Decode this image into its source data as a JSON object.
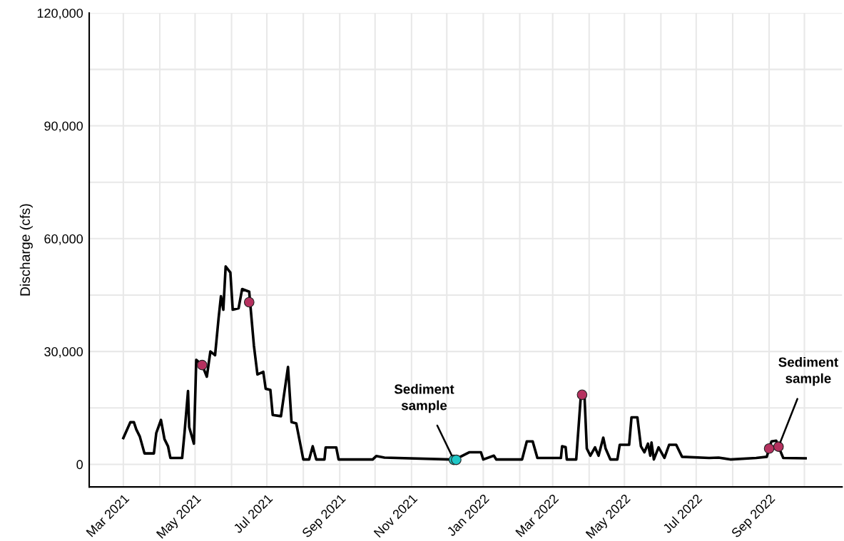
{
  "chart_data": {
    "type": "line",
    "ylabel": "Discharge (cfs)",
    "xlim": [
      "2021-01-31",
      "2022-11-02"
    ],
    "xticks": [
      {
        "value": "2021-03-01",
        "label": "Mar 2021"
      },
      {
        "value": "2021-04-01",
        "label": null
      },
      {
        "value": "2021-05-01",
        "label": "May 2021"
      },
      {
        "value": "2021-06-01",
        "label": null
      },
      {
        "value": "2021-07-01",
        "label": "Jul 2021"
      },
      {
        "value": "2021-08-01",
        "label": null
      },
      {
        "value": "2021-09-01",
        "label": "Sep 2021"
      },
      {
        "value": "2021-10-01",
        "label": null
      },
      {
        "value": "2021-11-01",
        "label": "Nov 2021"
      },
      {
        "value": "2021-12-01",
        "label": null
      },
      {
        "value": "2022-01-01",
        "label": "Jan 2022"
      },
      {
        "value": "2022-02-01",
        "label": null
      },
      {
        "value": "2022-03-01",
        "label": "Mar 2022"
      },
      {
        "value": "2022-04-01",
        "label": null
      },
      {
        "value": "2022-05-01",
        "label": "May 2022"
      },
      {
        "value": "2022-06-01",
        "label": null
      },
      {
        "value": "2022-07-01",
        "label": "Jul 2022"
      },
      {
        "value": "2022-08-01",
        "label": null
      },
      {
        "value": "2022-09-01",
        "label": "Sep 2022"
      },
      {
        "value": "2022-10-01",
        "label": null
      }
    ],
    "ylim": [
      -6000,
      120000
    ],
    "yticks": [
      {
        "value": 0,
        "label": "0"
      },
      {
        "value": 15000,
        "label": null
      },
      {
        "value": 30000,
        "label": "30,000"
      },
      {
        "value": 45000,
        "label": null
      },
      {
        "value": 60000,
        "label": "60,000"
      },
      {
        "value": 75000,
        "label": null
      },
      {
        "value": 90000,
        "label": "90,000"
      },
      {
        "value": 105000,
        "label": null
      },
      {
        "value": 120000,
        "label": "120,000"
      }
    ],
    "grid": true,
    "series": [
      {
        "color": "#000000",
        "marker": "none",
        "line_style": "solid",
        "x": [
          "2021-03-01",
          "2021-03-07",
          "2021-03-10",
          "2021-03-12",
          "2021-03-15",
          "2021-03-19",
          "2021-03-27",
          "2021-03-29",
          "2021-04-02",
          "2021-04-05",
          "2021-04-08",
          "2021-04-10",
          "2021-04-20",
          "2021-04-22",
          "2021-04-25",
          "2021-04-26",
          "2021-04-30",
          "2021-05-02",
          "2021-05-07",
          "2021-05-11",
          "2021-05-14",
          "2021-05-18",
          "2021-05-21",
          "2021-05-23",
          "2021-05-25",
          "2021-05-27",
          "2021-05-31",
          "2021-06-02",
          "2021-06-07",
          "2021-06-10",
          "2021-06-16",
          "2021-06-20",
          "2021-06-23",
          "2021-06-28",
          "2021-06-30",
          "2021-07-04",
          "2021-07-06",
          "2021-07-13",
          "2021-07-19",
          "2021-07-22",
          "2021-07-26",
          "2021-07-29",
          "2021-08-01",
          "2021-08-06",
          "2021-08-09",
          "2021-08-12",
          "2021-08-19",
          "2021-08-20",
          "2021-08-29",
          "2021-08-31",
          "2021-09-29",
          "2021-10-02",
          "2021-10-09",
          "2021-12-04",
          "2021-12-08",
          "2021-12-20",
          "2021-12-30",
          "2022-01-01",
          "2022-01-10",
          "2022-01-12",
          "2022-02-03",
          "2022-02-07",
          "2022-02-12",
          "2022-02-16",
          "2022-03-08",
          "2022-03-09",
          "2022-03-12",
          "2022-03-13",
          "2022-03-21",
          "2022-03-25",
          "2022-03-28",
          "2022-03-30",
          "2022-04-02",
          "2022-04-06",
          "2022-04-09",
          "2022-04-13",
          "2022-04-15",
          "2022-04-19",
          "2022-04-25",
          "2022-04-27",
          "2022-05-05",
          "2022-05-07",
          "2022-05-12",
          "2022-05-15",
          "2022-05-18",
          "2022-05-21",
          "2022-05-23",
          "2022-05-24",
          "2022-05-26",
          "2022-05-30",
          "2022-06-04",
          "2022-06-08",
          "2022-06-14",
          "2022-06-19",
          "2022-07-12",
          "2022-07-20",
          "2022-07-30",
          "2022-08-21",
          "2022-08-30",
          "2022-09-01",
          "2022-09-03",
          "2022-09-07",
          "2022-09-09",
          "2022-09-13",
          "2022-10-02"
        ],
        "values": [
          7000,
          11200,
          11200,
          9300,
          7400,
          2900,
          2900,
          8300,
          11800,
          6700,
          4800,
          1700,
          1700,
          8300,
          19500,
          9900,
          5500,
          27800,
          26400,
          23300,
          30000,
          29000,
          38900,
          44700,
          41100,
          52600,
          51000,
          41100,
          41500,
          46600,
          45900,
          31600,
          23900,
          24600,
          20100,
          19800,
          13100,
          12800,
          25900,
          11200,
          10900,
          6100,
          1300,
          1300,
          4800,
          1300,
          1300,
          4500,
          4500,
          1300,
          1300,
          2200,
          1800,
          1300,
          1300,
          3200,
          3200,
          1300,
          2300,
          1300,
          1300,
          6100,
          6100,
          1700,
          1700,
          4800,
          4600,
          1300,
          1300,
          18500,
          18500,
          4200,
          2300,
          4500,
          2300,
          7100,
          4200,
          1300,
          1300,
          5200,
          5200,
          12500,
          12500,
          4800,
          3200,
          5500,
          2300,
          5800,
          1300,
          4500,
          1700,
          5200,
          5200,
          2000,
          1700,
          1800,
          1300,
          1700,
          2000,
          4200,
          6100,
          6300,
          4700,
          1700,
          1600
        ]
      },
      {
        "type": "scatter",
        "color": "#b5315f",
        "marker": "circle",
        "x": [
          "2021-05-07",
          "2021-06-16",
          "2022-03-26",
          "2022-09-01",
          "2022-09-09"
        ],
        "values": [
          26400,
          43100,
          18500,
          4200,
          4700
        ]
      },
      {
        "type": "scatter",
        "color": "#1fc8c8",
        "marker": "circle",
        "x": [
          "2021-12-07",
          "2021-12-09"
        ],
        "values": [
          1200,
          1200
        ]
      }
    ],
    "annotations": [
      {
        "text": "Sediment\nsample",
        "x": "2021-12-07",
        "y": 1200
      },
      {
        "text": "Sediment\nsample",
        "x": "2022-09-09",
        "y": 4700
      }
    ]
  }
}
